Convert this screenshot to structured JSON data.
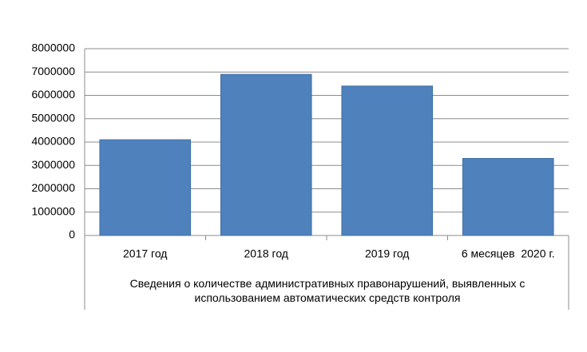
{
  "chart_data": {
    "type": "bar",
    "x_label": "Сведения о количестве административных правонарушений, выявленных с использованием автоматических средств контроля",
    "categories": [
      "2017 год",
      "2018 год",
      "2019 год",
      "6 месяцев  2020 г."
    ],
    "values": [
      4100000,
      6900000,
      6400000,
      3300000
    ],
    "color": "#4f81bd",
    "ylim": [
      0,
      8000000
    ],
    "yticks": [
      0,
      1000000,
      2000000,
      3000000,
      4000000,
      5000000,
      6000000,
      7000000,
      8000000
    ],
    "grid": true
  }
}
